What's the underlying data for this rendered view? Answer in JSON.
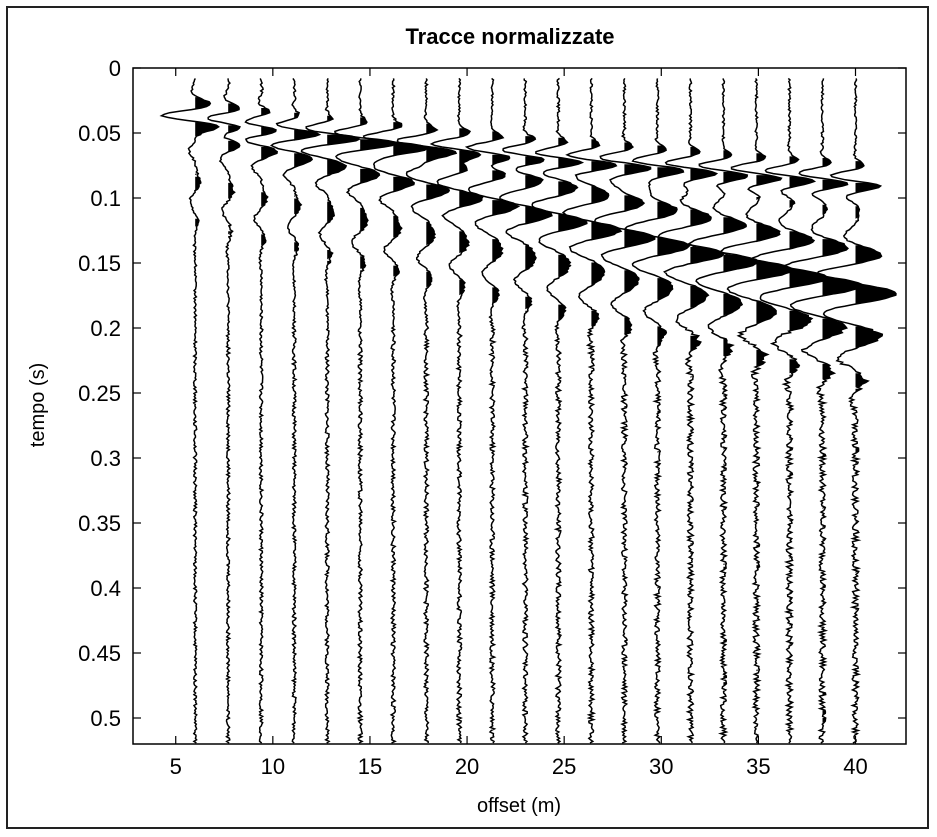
{
  "chart_data": {
    "type": "line",
    "subtype": "seismic-wiggle",
    "title": "Tracce normalizzate",
    "xlabel": "offset (m)",
    "ylabel": "tempo (s)",
    "xlim": [
      2.8,
      42.6
    ],
    "ylim": [
      0,
      0.52
    ],
    "y_reversed": true,
    "xticks": [
      5,
      10,
      15,
      20,
      25,
      30,
      35,
      40
    ],
    "xtick_labels": [
      "5",
      "10",
      "15",
      "20",
      "25",
      "30",
      "35",
      "40"
    ],
    "yticks": [
      0,
      0.05,
      0.1,
      0.15,
      0.2,
      0.25,
      0.3,
      0.35,
      0.4,
      0.45,
      0.5
    ],
    "ytick_labels": [
      "0",
      "0.05",
      "0.1",
      "0.15",
      "0.2",
      "0.25",
      "0.3",
      "0.35",
      "0.4",
      "0.45",
      "0.5"
    ],
    "grid": false,
    "trace_offsets": [
      6,
      7.7,
      9.4,
      11.1,
      12.8,
      14.5,
      16.2,
      17.9,
      19.6,
      21.3,
      23.0,
      24.7,
      26.4,
      28.1,
      29.8,
      31.5,
      33.2,
      34.9,
      36.6,
      38.3,
      40.0
    ],
    "wiggle_amplitude_m": 1.6,
    "arrivals": {
      "direct_wave_time_s": [
        0.04,
        0.042,
        0.045,
        0.048,
        0.051,
        0.054,
        0.057,
        0.06,
        0.062,
        0.065,
        0.067,
        0.069,
        0.071,
        0.073,
        0.075,
        0.077,
        0.079,
        0.081,
        0.083,
        0.085,
        0.087
      ],
      "surface_wave_time_s": [
        0.045,
        0.052,
        0.058,
        0.064,
        0.07,
        0.076,
        0.082,
        0.088,
        0.094,
        0.1,
        0.106,
        0.112,
        0.118,
        0.124,
        0.13,
        0.136,
        0.142,
        0.148,
        0.154,
        0.16,
        0.166
      ]
    },
    "trace_color": "#000000"
  }
}
